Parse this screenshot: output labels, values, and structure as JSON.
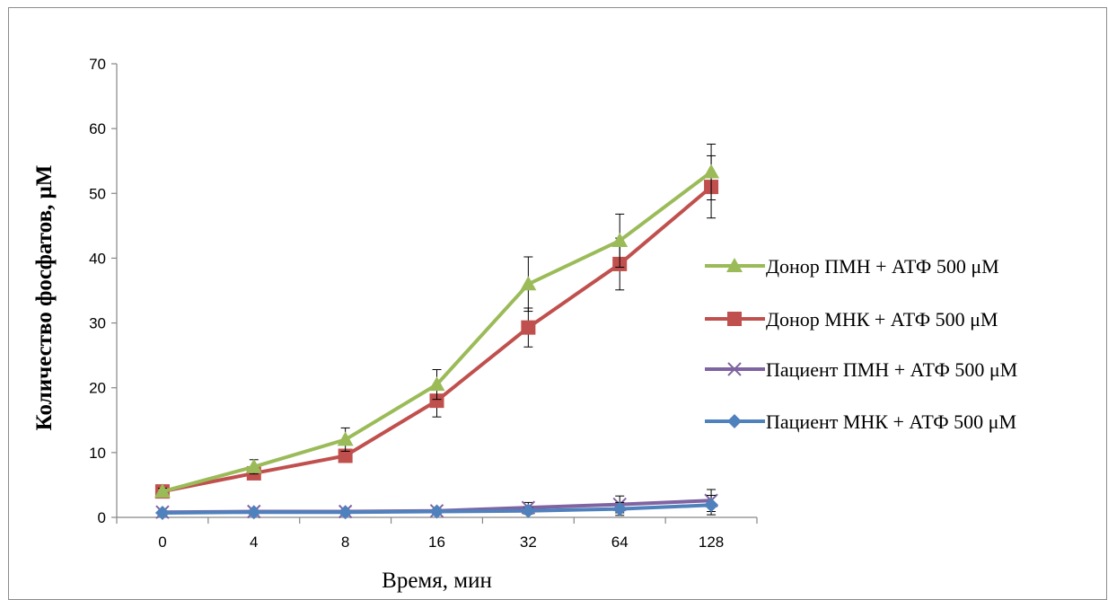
{
  "chart_data": {
    "type": "line",
    "categories": [
      "0",
      "4",
      "8",
      "16",
      "32",
      "64",
      "128"
    ],
    "xlabel": "Время, мин",
    "ylabel": "Количество фосфатов,  μM",
    "ylim": [
      0,
      70
    ],
    "yticks": [
      0,
      10,
      20,
      30,
      40,
      50,
      60,
      70
    ],
    "grid": false,
    "legend_position": "right",
    "series": [
      {
        "name": "Донор ПМН + АТФ 500 μM",
        "color": "#9BBB59",
        "marker": "triangle",
        "values": [
          4.0,
          7.8,
          12.0,
          20.5,
          36.0,
          42.7,
          53.3
        ],
        "errors": [
          0.5,
          1.1,
          1.8,
          2.3,
          4.2,
          4.1,
          4.3
        ]
      },
      {
        "name": "Донор МНК + АТФ 500 μM",
        "color": "#C0504D",
        "marker": "square",
        "values": [
          4.0,
          6.8,
          9.5,
          18.0,
          29.3,
          39.1,
          51.0
        ],
        "errors": [
          0.4,
          0.6,
          0.9,
          2.5,
          3.0,
          4.0,
          4.8
        ]
      },
      {
        "name": "Пациент ПМН + АТФ 500 μM",
        "color": "#8064A2",
        "marker": "x",
        "values": [
          0.8,
          0.9,
          0.9,
          1.0,
          1.5,
          2.0,
          2.6
        ],
        "errors": [
          0.2,
          0.2,
          0.2,
          0.3,
          0.8,
          1.3,
          1.7
        ]
      },
      {
        "name": "Пациент МНК + АТФ 500 μM",
        "color": "#4F81BD",
        "marker": "diamond",
        "values": [
          0.7,
          0.8,
          0.8,
          0.9,
          1.0,
          1.3,
          1.9
        ],
        "errors": [
          0.2,
          0.2,
          0.2,
          0.3,
          0.5,
          1.0,
          1.5
        ]
      }
    ]
  }
}
